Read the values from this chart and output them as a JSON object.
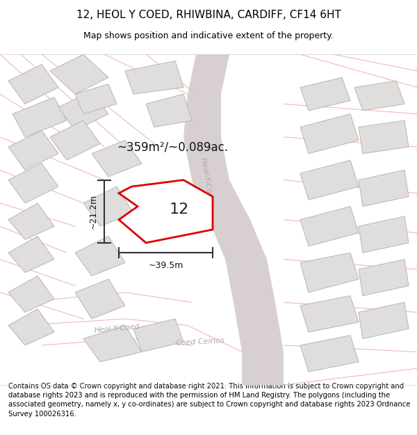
{
  "title": "12, HEOL Y COED, RHIWBINA, CARDIFF, CF14 6HT",
  "subtitle": "Map shows position and indicative extent of the property.",
  "area_text": "~359m²/~0.089ac.",
  "property_number": "12",
  "dim_width": "~39.5m",
  "dim_height": "~21.2m",
  "footer": "Contains OS data © Crown copyright and database right 2021. This information is subject to Crown copyright and database rights 2023 and is reproduced with the permission of HM Land Registry. The polygons (including the associated geometry, namely x, y co-ordinates) are subject to Crown copyright and database rights 2023 Ordnance Survey 100026316.",
  "bg_color": "#ffffff",
  "map_bg": "#ffffff",
  "plot_color": "#dd0000",
  "street_color": "#f0b8b8",
  "road_color": "#d8d0d0",
  "road_edge": "#c8c0c0",
  "building_color": "#e0dedd",
  "building_edge": "#b8b4b0",
  "street_label_color": "#aaaaaa",
  "title_fontsize": 11,
  "subtitle_fontsize": 9,
  "footer_fontsize": 7.2
}
